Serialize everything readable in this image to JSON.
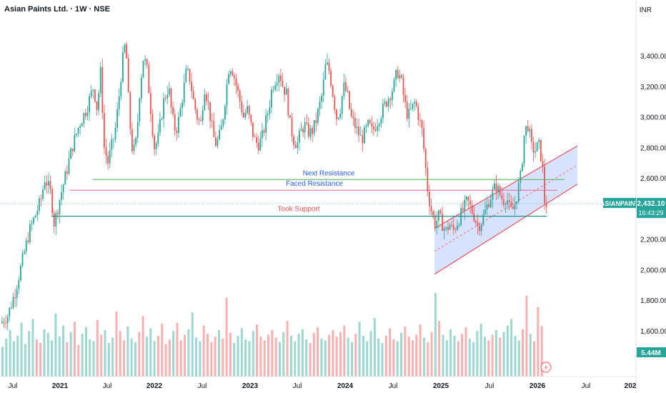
{
  "header": {
    "title": "Asian Paints Ltd. · 1W · NSE",
    "currency": "INR"
  },
  "price_tag": {
    "symbol": "ASIANPAINT",
    "price": "2,432.10",
    "countdown": "16:43:29",
    "volume": "5.44M"
  },
  "colors": {
    "up": "#26a69a",
    "down": "#ef5350",
    "channel": "#f23645",
    "channel_fill": "#c9d8fb",
    "green_line": "#4caf50",
    "pink_line": "#f06292",
    "teal_line": "#00897b"
  },
  "chart_data": {
    "type": "candlestick",
    "ylim": [
      1300,
      3700
    ],
    "yticks": [
      {
        "v": 3400,
        "label": "3,400.00"
      },
      {
        "v": 3200,
        "label": "3,200.00"
      },
      {
        "v": 3000,
        "label": "3,000.00"
      },
      {
        "v": 2800,
        "label": "2,800.00"
      },
      {
        "v": 2600,
        "label": "2,600.00"
      },
      {
        "v": 2200,
        "label": "2,200.00"
      },
      {
        "v": 2000,
        "label": "2,000.00"
      },
      {
        "v": 1800,
        "label": "1,800.00"
      },
      {
        "v": 1600,
        "label": "1,600.00"
      }
    ],
    "xticks": [
      {
        "label": "Jul",
        "bold": false
      },
      {
        "label": "2021",
        "bold": true
      },
      {
        "label": "Jul",
        "bold": false
      },
      {
        "label": "2022",
        "bold": true
      },
      {
        "label": "Jul",
        "bold": false
      },
      {
        "label": "2023",
        "bold": true
      },
      {
        "label": "Jul",
        "bold": false
      },
      {
        "label": "2024",
        "bold": true
      },
      {
        "label": "Jul",
        "bold": false
      },
      {
        "label": "2025",
        "bold": true
      },
      {
        "label": "Jul",
        "bold": false
      },
      {
        "label": "2026",
        "bold": true
      },
      {
        "label": "Jul",
        "bold": false
      },
      {
        "label": "202",
        "bold": true
      }
    ],
    "price_path": [
      [
        0,
        1650
      ],
      [
        10,
        1700
      ],
      [
        20,
        1850
      ],
      [
        30,
        2050
      ],
      [
        40,
        2250
      ],
      [
        48,
        2350
      ],
      [
        56,
        2450
      ],
      [
        62,
        2600
      ],
      [
        70,
        2500
      ],
      [
        75,
        2300
      ],
      [
        82,
        2450
      ],
      [
        90,
        2600
      ],
      [
        100,
        2800
      ],
      [
        110,
        2950
      ],
      [
        120,
        3050
      ],
      [
        130,
        3200
      ],
      [
        135,
        3050
      ],
      [
        140,
        3300
      ],
      [
        145,
        2800
      ],
      [
        150,
        2700
      ],
      [
        160,
        2900
      ],
      [
        165,
        3100
      ],
      [
        170,
        3350
      ],
      [
        175,
        3500
      ],
      [
        180,
        3000
      ],
      [
        185,
        2750
      ],
      [
        190,
        2850
      ],
      [
        195,
        3200
      ],
      [
        200,
        3400
      ],
      [
        205,
        3300
      ],
      [
        210,
        3050
      ],
      [
        215,
        2800
      ],
      [
        220,
        2850
      ],
      [
        228,
        3100
      ],
      [
        235,
        3200
      ],
      [
        240,
        3000
      ],
      [
        245,
        2900
      ],
      [
        250,
        3000
      ],
      [
        255,
        3150
      ],
      [
        260,
        3300
      ],
      [
        265,
        3250
      ],
      [
        270,
        3100
      ],
      [
        275,
        3000
      ],
      [
        280,
        2950
      ],
      [
        285,
        3200
      ],
      [
        290,
        3100
      ],
      [
        295,
        2950
      ],
      [
        300,
        2820
      ],
      [
        305,
        2850
      ],
      [
        310,
        2950
      ],
      [
        315,
        3150
      ],
      [
        320,
        3350
      ],
      [
        325,
        3300
      ],
      [
        330,
        3200
      ],
      [
        335,
        3100
      ],
      [
        340,
        3000
      ],
      [
        345,
        3050
      ],
      [
        350,
        2950
      ],
      [
        355,
        2850
      ],
      [
        360,
        2820
      ],
      [
        365,
        2850
      ],
      [
        370,
        2950
      ],
      [
        375,
        3050
      ],
      [
        380,
        3200
      ],
      [
        385,
        3250
      ],
      [
        390,
        3300
      ],
      [
        395,
        3200
      ],
      [
        400,
        3150
      ],
      [
        405,
        2950
      ],
      [
        410,
        2850
      ],
      [
        415,
        2820
      ],
      [
        420,
        2900
      ],
      [
        425,
        2950
      ],
      [
        430,
        2900
      ],
      [
        435,
        2900
      ],
      [
        440,
        2950
      ],
      [
        445,
        3050
      ],
      [
        450,
        3150
      ],
      [
        455,
        3350
      ],
      [
        460,
        3300
      ],
      [
        465,
        3150
      ],
      [
        470,
        3000
      ],
      [
        475,
        3050
      ],
      [
        480,
        3200
      ],
      [
        485,
        3150
      ],
      [
        490,
        3000
      ],
      [
        495,
        2950
      ],
      [
        500,
        2900
      ],
      [
        505,
        2850
      ],
      [
        510,
        2900
      ],
      [
        515,
        2950
      ],
      [
        520,
        2900
      ],
      [
        525,
        2950
      ],
      [
        530,
        3000
      ],
      [
        535,
        3050
      ],
      [
        540,
        3100
      ],
      [
        545,
        3150
      ],
      [
        550,
        3200
      ],
      [
        555,
        3300
      ],
      [
        560,
        3250
      ],
      [
        565,
        3100
      ],
      [
        570,
        3000
      ],
      [
        575,
        3050
      ],
      [
        580,
        3100
      ],
      [
        585,
        3000
      ],
      [
        590,
        2900
      ],
      [
        598,
        2500
      ],
      [
        603,
        2380
      ],
      [
        608,
        2300
      ],
      [
        613,
        2350
      ],
      [
        618,
        2300
      ],
      [
        623,
        2250
      ],
      [
        628,
        2300
      ],
      [
        633,
        2250
      ],
      [
        638,
        2300
      ],
      [
        643,
        2350
      ],
      [
        648,
        2400
      ],
      [
        653,
        2450
      ],
      [
        658,
        2400
      ],
      [
        663,
        2350
      ],
      [
        668,
        2280
      ],
      [
        673,
        2320
      ],
      [
        678,
        2380
      ],
      [
        683,
        2450
      ],
      [
        688,
        2500
      ],
      [
        693,
        2550
      ],
      [
        698,
        2500
      ],
      [
        703,
        2450
      ],
      [
        708,
        2480
      ],
      [
        713,
        2380
      ],
      [
        718,
        2400
      ],
      [
        723,
        2500
      ],
      [
        728,
        2620
      ],
      [
        733,
        2900
      ],
      [
        738,
        2950
      ],
      [
        743,
        2800
      ],
      [
        748,
        2780
      ],
      [
        753,
        2820
      ],
      [
        758,
        2700
      ],
      [
        761,
        2450
      ],
      [
        764,
        2432
      ]
    ],
    "volumes": [
      3.2,
      4.1,
      5.0,
      3.8,
      4.4,
      5.8,
      3.5,
      4.9,
      6.2,
      4.0,
      3.6,
      5.1,
      4.7,
      3.9,
      6.8,
      4.3,
      5.5,
      3.7,
      4.8,
      5.9,
      3.4,
      4.6,
      5.3,
      4.0,
      3.8,
      6.1,
      4.5,
      5.0,
      3.6,
      4.2,
      7.0,
      4.9,
      3.9,
      5.4,
      4.1,
      3.7,
      4.8,
      6.5,
      4.3,
      5.2,
      3.8,
      4.4,
      5.7,
      3.5,
      4.0,
      4.9,
      5.8,
      3.9,
      4.5,
      5.1,
      6.9,
      4.2,
      3.8,
      5.5,
      4.6,
      3.7,
      4.3,
      5.0,
      4.1,
      8.5,
      4.7,
      3.6,
      4.4,
      5.2,
      4.0,
      3.8,
      4.9,
      5.6,
      4.3,
      3.9,
      4.5,
      5.0,
      4.2,
      3.7,
      4.8,
      6.0,
      4.4,
      3.8,
      4.6,
      5.1,
      4.0,
      3.6,
      4.7,
      5.3,
      4.1,
      3.9,
      4.5,
      5.0,
      4.3,
      4.8,
      5.5,
      4.2,
      3.7,
      4.6,
      5.9,
      4.4,
      3.8,
      4.9,
      6.3,
      4.1,
      3.6,
      4.4,
      5.2,
      4.0,
      3.8,
      4.7,
      5.4,
      4.3,
      3.9,
      4.5,
      5.6,
      4.2,
      3.7,
      4.8,
      9.0,
      6.0,
      4.5,
      3.9,
      5.1,
      4.4,
      3.8,
      4.6,
      5.3,
      4.1,
      3.7,
      4.9,
      5.7,
      4.3,
      3.9,
      4.5,
      5.0,
      4.2,
      4.8,
      5.5,
      6.2,
      4.4,
      3.9,
      5.1,
      8.7,
      4.6,
      3.8,
      7.5,
      5.44
    ]
  },
  "annotations": {
    "next_resistance": {
      "label": "Next Resistance",
      "price": 2590
    },
    "faced_resistance": {
      "label": "Faced Resistance",
      "price": 2520
    },
    "took_support": {
      "label": "Took Support",
      "price": 2350
    }
  }
}
